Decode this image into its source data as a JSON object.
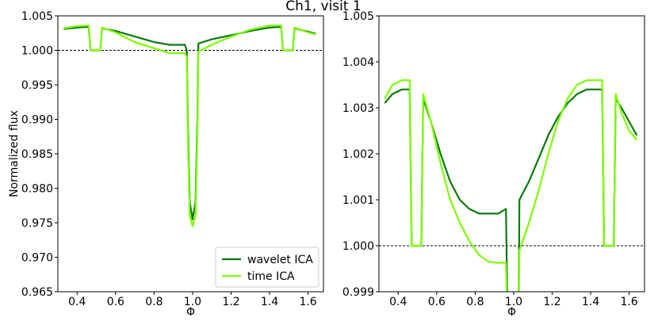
{
  "figure_title": "Ch1, visit 1",
  "colors": {
    "wavelet": "#0a7a0a",
    "time": "#7cfc00",
    "reference": "#000000"
  },
  "chart_data": [
    {
      "type": "line",
      "xlabel": "Φ",
      "ylabel": "Normalized flux",
      "xlim": [
        0.3,
        1.68
      ],
      "ylim": [
        0.965,
        1.005
      ],
      "xticks": [
        "0.4",
        "0.6",
        "0.8",
        "1.0",
        "1.2",
        "1.4",
        "1.6"
      ],
      "yticks": [
        "0.965",
        "0.970",
        "0.975",
        "0.980",
        "0.985",
        "0.990",
        "0.995",
        "1.000",
        "1.005"
      ],
      "reference_line": 1.0,
      "legend": {
        "placement": "lower-right",
        "entries": [
          "wavelet ICA",
          "time ICA"
        ]
      },
      "series": [
        {
          "name": "wavelet ICA",
          "x": [
            0.33,
            0.4,
            0.46,
            0.47,
            0.51,
            0.52,
            0.53,
            0.6,
            0.7,
            0.8,
            0.88,
            0.96,
            0.97,
            0.975,
            0.985,
            1.0,
            1.015,
            1.025,
            1.03,
            1.1,
            1.2,
            1.3,
            1.4,
            1.46,
            1.47,
            1.51,
            1.52,
            1.53,
            1.6,
            1.64
          ],
          "y": [
            1.0031,
            1.0033,
            1.0034,
            1.0,
            1.0,
            1.0,
            1.0032,
            1.0028,
            1.002,
            1.0012,
            1.0008,
            1.0008,
            1.0,
            0.99,
            0.978,
            0.9755,
            0.978,
            0.99,
            1.001,
            1.0016,
            1.0022,
            1.0028,
            1.0033,
            1.0034,
            1.0,
            1.0,
            1.0,
            1.0032,
            1.0027,
            1.0024
          ]
        },
        {
          "name": "time ICA",
          "x": [
            0.33,
            0.4,
            0.46,
            0.47,
            0.51,
            0.52,
            0.53,
            0.6,
            0.7,
            0.8,
            0.88,
            0.96,
            0.97,
            0.975,
            0.985,
            1.0,
            1.015,
            1.025,
            1.03,
            1.1,
            1.2,
            1.3,
            1.4,
            1.46,
            1.47,
            1.51,
            1.52,
            1.53,
            1.6,
            1.64
          ],
          "y": [
            1.0032,
            1.0035,
            1.0036,
            1.0,
            1.0,
            1.0,
            1.0033,
            1.0026,
            1.0012,
            1.0003,
            0.9996,
            0.9996,
            0.999,
            0.988,
            0.976,
            0.9745,
            0.976,
            0.988,
            0.9998,
            1.0008,
            1.002,
            1.003,
            1.0036,
            1.0036,
            1.0,
            1.0,
            1.0,
            1.0033,
            1.0026,
            1.0023
          ]
        }
      ]
    },
    {
      "type": "line",
      "xlabel": "Φ",
      "ylabel": "",
      "xlim": [
        0.3,
        1.68
      ],
      "ylim": [
        0.999,
        1.005
      ],
      "xticks": [
        "0.4",
        "0.6",
        "0.8",
        "1.0",
        "1.2",
        "1.4",
        "1.6"
      ],
      "yticks": [
        "0.999",
        "1.000",
        "1.001",
        "1.002",
        "1.003",
        "1.004",
        "1.005"
      ],
      "reference_line": 1.0,
      "series": [
        {
          "name": "wavelet ICA",
          "x": [
            0.33,
            0.37,
            0.42,
            0.46,
            0.47,
            0.51,
            0.52,
            0.53,
            0.57,
            0.62,
            0.67,
            0.72,
            0.77,
            0.82,
            0.87,
            0.92,
            0.96,
            0.97,
            1.025,
            1.03,
            1.08,
            1.13,
            1.18,
            1.23,
            1.28,
            1.33,
            1.38,
            1.42,
            1.46,
            1.47,
            1.51,
            1.52,
            1.53,
            1.56,
            1.6,
            1.64
          ],
          "y": [
            1.0031,
            1.0033,
            1.0034,
            1.0034,
            1.0,
            1.0,
            1.0,
            1.0032,
            1.0027,
            1.002,
            1.0014,
            1.001,
            1.0008,
            1.0007,
            1.0007,
            1.0007,
            1.0008,
            0.998,
            0.998,
            1.001,
            1.0014,
            1.0019,
            1.0024,
            1.0028,
            1.0031,
            1.0033,
            1.0034,
            1.0034,
            1.0034,
            1.0,
            1.0,
            1.0,
            1.0032,
            1.003,
            1.0027,
            1.0024
          ]
        },
        {
          "name": "time ICA",
          "x": [
            0.33,
            0.37,
            0.42,
            0.46,
            0.47,
            0.51,
            0.52,
            0.53,
            0.57,
            0.62,
            0.67,
            0.72,
            0.77,
            0.82,
            0.87,
            0.92,
            0.96,
            0.97,
            1.025,
            1.03,
            1.08,
            1.13,
            1.18,
            1.23,
            1.28,
            1.33,
            1.38,
            1.42,
            1.46,
            1.47,
            1.51,
            1.52,
            1.53,
            1.56,
            1.6,
            1.64
          ],
          "y": [
            1.0032,
            1.0035,
            1.0036,
            1.0036,
            1.0,
            1.0,
            1.0,
            1.0033,
            1.0027,
            1.0018,
            1.001,
            1.0005,
            1.0001,
            0.9998,
            0.99965,
            0.99963,
            0.99963,
            0.998,
            0.998,
            0.9999,
            1.0005,
            1.0012,
            1.002,
            1.0027,
            1.0032,
            1.0035,
            1.0036,
            1.0036,
            1.0036,
            1.0,
            1.0,
            1.0,
            1.0033,
            1.0029,
            1.0025,
            1.0023
          ]
        }
      ]
    }
  ]
}
